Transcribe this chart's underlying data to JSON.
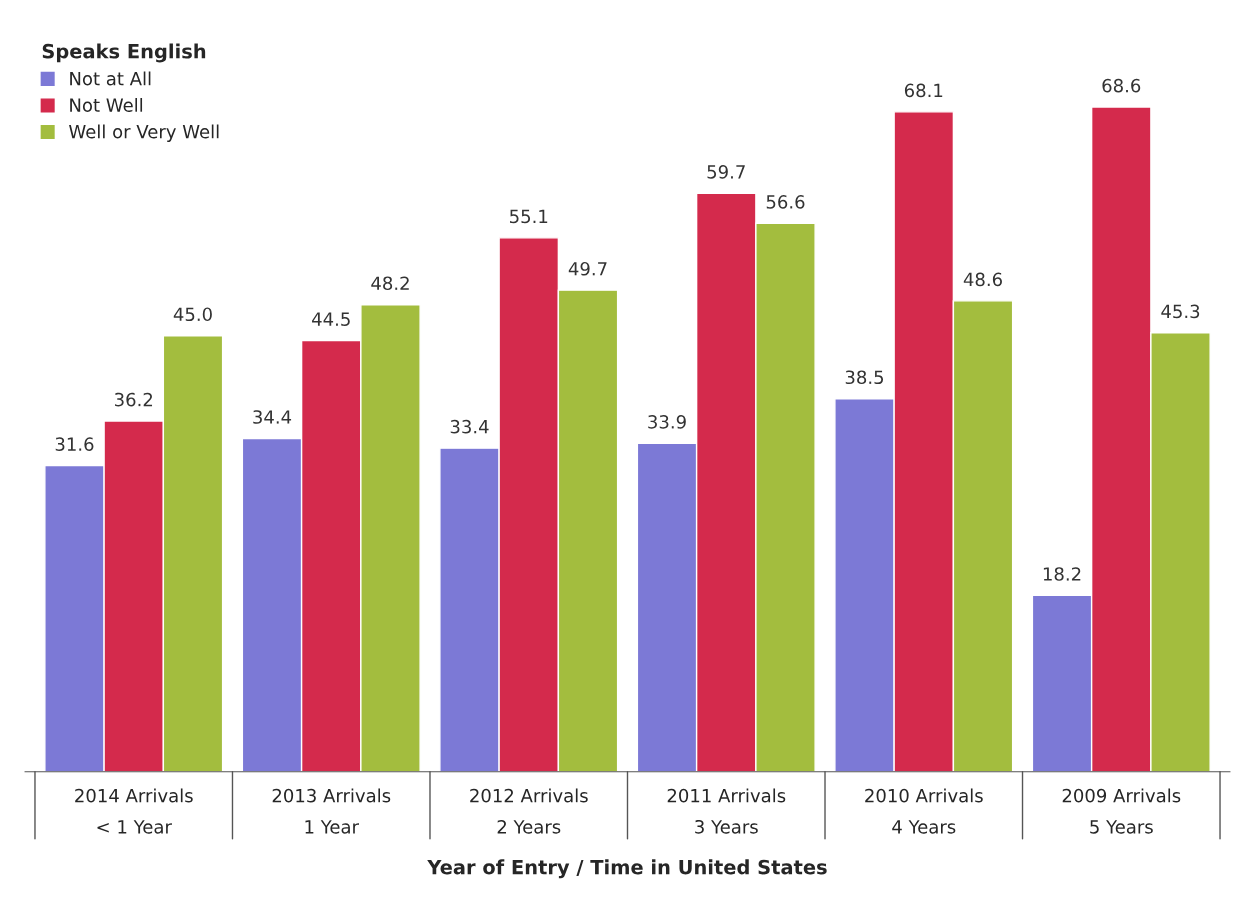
{
  "chart_data": {
    "type": "bar",
    "xlabel": "Year of Entry / Time in United States",
    "legend_title": "Speaks English",
    "categories": [
      "2014 Arrivals\n< 1 Year",
      "2013 Arrivals\n1 Year",
      "2012 Arrivals\n2 Years",
      "2011 Arrivals\n3 Years",
      "2010 Arrivals\n4 Years",
      "2009 Arrivals\n5 Years"
    ],
    "series": [
      {
        "name": "Not at All",
        "color": "#7c79d6",
        "values": [
          31.6,
          34.4,
          33.4,
          33.9,
          38.5,
          18.2
        ],
        "value_labels": [
          "31.6",
          "34.4",
          "33.4",
          "33.9",
          "38.5",
          "18.2"
        ]
      },
      {
        "name": "Not Well",
        "color": "#d42a4c",
        "values": [
          36.2,
          44.5,
          55.1,
          59.7,
          68.1,
          68.6
        ],
        "value_labels": [
          "36.2",
          "44.5",
          "55.1",
          "59.7",
          "68.1",
          "68.6"
        ]
      },
      {
        "name": "Well or Very Well",
        "color": "#a3bd3e",
        "values": [
          45.0,
          48.2,
          49.7,
          56.6,
          48.6,
          45.3
        ],
        "value_labels": [
          "45.0",
          "48.2",
          "49.7",
          "56.6",
          "48.6",
          "45.3"
        ]
      }
    ],
    "legend": "top left",
    "grid": false
  }
}
